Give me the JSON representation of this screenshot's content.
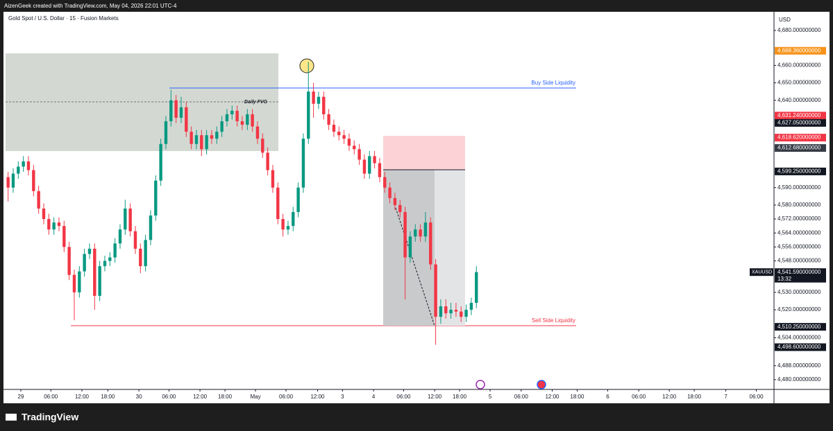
{
  "chart_data": {
    "type": "candlestick",
    "header": "AizenGeek created with TradingView.com, May 04, 2026 22:01 UTC-4",
    "title": "Gold Spot / U.S. Dollar · 15 · Fusion Markets",
    "y_axis_label": "USD",
    "symbol": "XAUUSD",
    "countdown": "13:32",
    "brand": "TradingView",
    "fvg_label": "Daily FVG",
    "buy_side_label": "Buy Side Liquidity",
    "sell_side_label": "Sell Side Liquidity",
    "up_color": "#089981",
    "down_color": "#f23645",
    "x": [
      0,
      1,
      2,
      3,
      4,
      5,
      6,
      7,
      8,
      9,
      10,
      11,
      12,
      13,
      14,
      15,
      16,
      17,
      18,
      19,
      20,
      21,
      22,
      23,
      24,
      25,
      26,
      27,
      28,
      29,
      30,
      31,
      32,
      33,
      34,
      35,
      36,
      37,
      38,
      39,
      40,
      41,
      42,
      43,
      44,
      45,
      46,
      47,
      48,
      49,
      50,
      51,
      52,
      53,
      54,
      55,
      56,
      57,
      58,
      59,
      60,
      61,
      62,
      63,
      64,
      65,
      66,
      67,
      68,
      69,
      70,
      71,
      72,
      73,
      74,
      75,
      76,
      77,
      78,
      79,
      80,
      81,
      82,
      83,
      84,
      85,
      86,
      87,
      88,
      89,
      90,
      91,
      92
    ],
    "open": [
      4596,
      4590,
      4598,
      4602,
      4605,
      4600,
      4588,
      4578,
      4572,
      4566,
      4570,
      4568,
      4556,
      4540,
      4530,
      4542,
      4552,
      4555,
      4528,
      4545,
      4548,
      4550,
      4558,
      4566,
      4578,
      4565,
      4555,
      4545,
      4560,
      4574,
      4594,
      4615,
      4628,
      4640,
      4630,
      4636,
      4622,
      4615,
      4620,
      4612,
      4620,
      4618,
      4622,
      4628,
      4632,
      4634,
      4628,
      4626,
      4632,
      4625,
      4618,
      4610,
      4600,
      4590,
      4572,
      4566,
      4568,
      4576,
      4590,
      4618,
      4645,
      4638,
      4642,
      4632,
      4626,
      4622,
      4620,
      4618,
      4614,
      4612,
      4606,
      4598,
      4608,
      4604,
      4596,
      4590,
      4584,
      4580,
      4576,
      4550,
      4562,
      4566,
      4562,
      4570,
      4546,
      4516,
      4522,
      4518,
      4520,
      4519,
      4516,
      4520,
      4524
    ],
    "high": [
      4599,
      4601,
      4605,
      4608,
      4608,
      4603,
      4591,
      4581,
      4575,
      4573,
      4573,
      4571,
      4559,
      4543,
      4545,
      4555,
      4558,
      4558,
      4548,
      4551,
      4553,
      4561,
      4569,
      4583,
      4581,
      4568,
      4558,
      4563,
      4577,
      4597,
      4618,
      4631,
      4646,
      4643,
      4642,
      4639,
      4625,
      4623,
      4623,
      4623,
      4623,
      4625,
      4631,
      4635,
      4637,
      4637,
      4631,
      4635,
      4635,
      4628,
      4621,
      4613,
      4603,
      4593,
      4575,
      4571,
      4579,
      4593,
      4621,
      4662,
      4650,
      4645,
      4645,
      4635,
      4629,
      4625,
      4623,
      4621,
      4617,
      4615,
      4609,
      4611,
      4611,
      4607,
      4599,
      4593,
      4587,
      4583,
      4579,
      4565,
      4569,
      4569,
      4576,
      4573,
      4549,
      4526,
      4526,
      4524,
      4524,
      4522,
      4523,
      4527,
      4545
    ],
    "low": [
      4582,
      4587,
      4595,
      4599,
      4597,
      4585,
      4575,
      4569,
      4563,
      4563,
      4565,
      4553,
      4537,
      4514,
      4527,
      4539,
      4549,
      4520,
      4525,
      4542,
      4545,
      4547,
      4555,
      4563,
      4562,
      4552,
      4541,
      4542,
      4557,
      4571,
      4591,
      4612,
      4625,
      4627,
      4627,
      4619,
      4612,
      4612,
      4608,
      4609,
      4615,
      4615,
      4619,
      4625,
      4629,
      4625,
      4623,
      4623,
      4622,
      4615,
      4607,
      4597,
      4587,
      4569,
      4562,
      4563,
      4565,
      4573,
      4587,
      4615,
      4630,
      4635,
      4629,
      4623,
      4619,
      4617,
      4615,
      4611,
      4609,
      4603,
      4595,
      4595,
      4601,
      4593,
      4587,
      4581,
      4577,
      4573,
      4526,
      4547,
      4559,
      4559,
      4559,
      4543,
      4500,
      4512,
      4515,
      4515,
      4516,
      4513,
      4513,
      4517,
      4521
    ],
    "close": [
      4590,
      4598,
      4602,
      4605,
      4600,
      4588,
      4578,
      4572,
      4566,
      4570,
      4568,
      4556,
      4540,
      4530,
      4542,
      4552,
      4555,
      4528,
      4545,
      4548,
      4550,
      4558,
      4566,
      4578,
      4565,
      4555,
      4545,
      4560,
      4574,
      4594,
      4615,
      4628,
      4640,
      4630,
      4636,
      4622,
      4615,
      4620,
      4612,
      4620,
      4618,
      4622,
      4628,
      4632,
      4634,
      4628,
      4626,
      4632,
      4625,
      4618,
      4610,
      4600,
      4590,
      4572,
      4566,
      4568,
      4576,
      4590,
      4618,
      4645,
      4638,
      4642,
      4632,
      4626,
      4622,
      4620,
      4618,
      4614,
      4612,
      4606,
      4598,
      4608,
      4604,
      4596,
      4590,
      4584,
      4580,
      4576,
      4550,
      4562,
      4566,
      4562,
      4570,
      4546,
      4516,
      4522,
      4518,
      4520,
      4519,
      4516,
      4520,
      4524,
      4541.59
    ],
    "xlim": [
      -0.5,
      150.2
    ],
    "ylim": [
      4474.4,
      4690.3
    ],
    "xticks": [
      {
        "value": 2.5,
        "label": "29"
      },
      {
        "value": 8.4,
        "label": "06:00"
      },
      {
        "value": 14.5,
        "label": "12:00"
      },
      {
        "value": 19.6,
        "label": "18:00"
      },
      {
        "value": 25.7,
        "label": "30"
      },
      {
        "value": 31.6,
        "label": "06:00"
      },
      {
        "value": 37.7,
        "label": "12:00"
      },
      {
        "value": 42.6,
        "label": "18:00"
      },
      {
        "value": 48.6,
        "label": "May"
      },
      {
        "value": 54.6,
        "label": "06:00"
      },
      {
        "value": 60.8,
        "label": "12:00"
      },
      {
        "value": 65.7,
        "label": "3"
      },
      {
        "value": 71.8,
        "label": "4"
      },
      {
        "value": 77.7,
        "label": "06:00"
      },
      {
        "value": 83.8,
        "label": "12:00"
      },
      {
        "value": 88.7,
        "label": "18:00"
      },
      {
        "value": 94.7,
        "label": "5"
      },
      {
        "value": 100.8,
        "label": "06:00"
      },
      {
        "value": 106.9,
        "label": "12:00"
      },
      {
        "value": 111.8,
        "label": "18:00"
      },
      {
        "value": 117.8,
        "label": "6"
      },
      {
        "value": 123.9,
        "label": "06:00"
      },
      {
        "value": 129.9,
        "label": "12:00"
      },
      {
        "value": 134.8,
        "label": "18:00"
      },
      {
        "value": 141.0,
        "label": "7"
      },
      {
        "value": 147.0,
        "label": "06:00"
      }
    ],
    "yticks": [
      {
        "value": 4680,
        "label": "4,680.000000000"
      },
      {
        "value": 4660,
        "label": "4,660.000000000"
      },
      {
        "value": 4650,
        "label": "4,650.000000000"
      },
      {
        "value": 4640,
        "label": "4,640.000000000"
      },
      {
        "value": 4590,
        "label": "4,590.000000000"
      },
      {
        "value": 4580,
        "label": "4,580.000000000"
      },
      {
        "value": 4572,
        "label": "4,572.000000000"
      },
      {
        "value": 4564,
        "label": "4,564.000000000"
      },
      {
        "value": 4556,
        "label": "4,556.000000000"
      },
      {
        "value": 4548,
        "label": "4,548.000000000"
      },
      {
        "value": 4530,
        "label": "4,530.000000000"
      },
      {
        "value": 4520,
        "label": "4,520.000000000"
      },
      {
        "value": 4504,
        "label": "4,504.000000000"
      },
      {
        "value": 4488,
        "label": "4,488.000000000"
      },
      {
        "value": 4480,
        "label": "4,480.000000000"
      }
    ],
    "price_labels": [
      {
        "value": 4668.36,
        "label": "4,668.360000000",
        "color": "#f7931a"
      },
      {
        "value": 4631.24,
        "label": "4,631.240000000",
        "color": "#f23645"
      },
      {
        "value": 4627.05,
        "label": "4,627.050000000",
        "color": "#131722"
      },
      {
        "value": 4618.62,
        "label": "4,618.620000000",
        "color": "#f23645"
      },
      {
        "value": 4612.68,
        "label": "4,612.680000000",
        "color": "#363a45"
      },
      {
        "value": 4599.25,
        "label": "4,599.250000000",
        "color": "#131722"
      },
      {
        "value": 4541.59,
        "label": "4,541.590000000",
        "color": "#131722"
      },
      {
        "value": 4510.25,
        "label": "4,510.250000000",
        "color": "#131722"
      },
      {
        "value": 4498.6,
        "label": "4,498.600000000",
        "color": "#131722"
      }
    ]
  }
}
